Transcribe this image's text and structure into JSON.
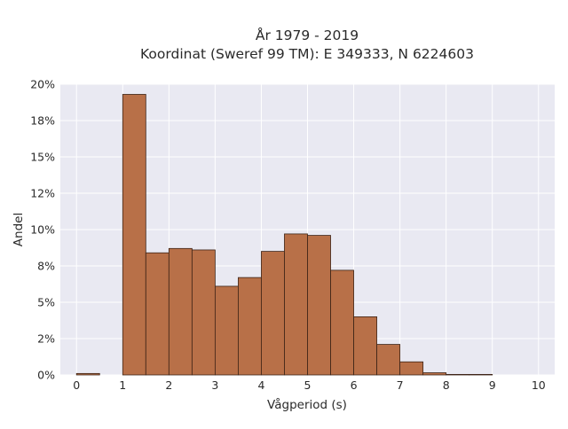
{
  "chart_data": {
    "type": "bar",
    "title_lines": [
      "År 1979 - 2019",
      "Koordinat (Sweref 99 TM): E 349333, N 6224603"
    ],
    "xlabel": "Vågperiod (s)",
    "ylabel": "Andel",
    "x_ticks": [
      "0",
      "1",
      "2",
      "3",
      "4",
      "5",
      "6",
      "7",
      "8",
      "9",
      "10"
    ],
    "y_ticks": [
      "0%",
      "2%",
      "5%",
      "8%",
      "10%",
      "12%",
      "15%",
      "18%",
      "20%"
    ],
    "xlim": [
      -0.35,
      10.35
    ],
    "ylim": [
      0,
      0.2
    ],
    "grid": true,
    "bar_width": 0.5,
    "bins": [
      {
        "x0": 0.0,
        "value": 0.001
      },
      {
        "x0": 1.0,
        "value": 0.193
      },
      {
        "x0": 1.5,
        "value": 0.084
      },
      {
        "x0": 2.0,
        "value": 0.087
      },
      {
        "x0": 2.5,
        "value": 0.086
      },
      {
        "x0": 3.0,
        "value": 0.061
      },
      {
        "x0": 3.5,
        "value": 0.067
      },
      {
        "x0": 4.0,
        "value": 0.085
      },
      {
        "x0": 4.5,
        "value": 0.097
      },
      {
        "x0": 5.0,
        "value": 0.096
      },
      {
        "x0": 5.5,
        "value": 0.072
      },
      {
        "x0": 6.0,
        "value": 0.04
      },
      {
        "x0": 6.5,
        "value": 0.021
      },
      {
        "x0": 7.0,
        "value": 0.009
      },
      {
        "x0": 7.5,
        "value": 0.0015
      },
      {
        "x0": 8.0,
        "value": 0.0003
      },
      {
        "x0": 8.5,
        "value": 0.0001
      }
    ],
    "colors": {
      "bar_fill": "#b5693e",
      "bar_stroke": "#3d2417",
      "plot_bg": "#e9e9f2",
      "grid": "#ffffff"
    }
  }
}
